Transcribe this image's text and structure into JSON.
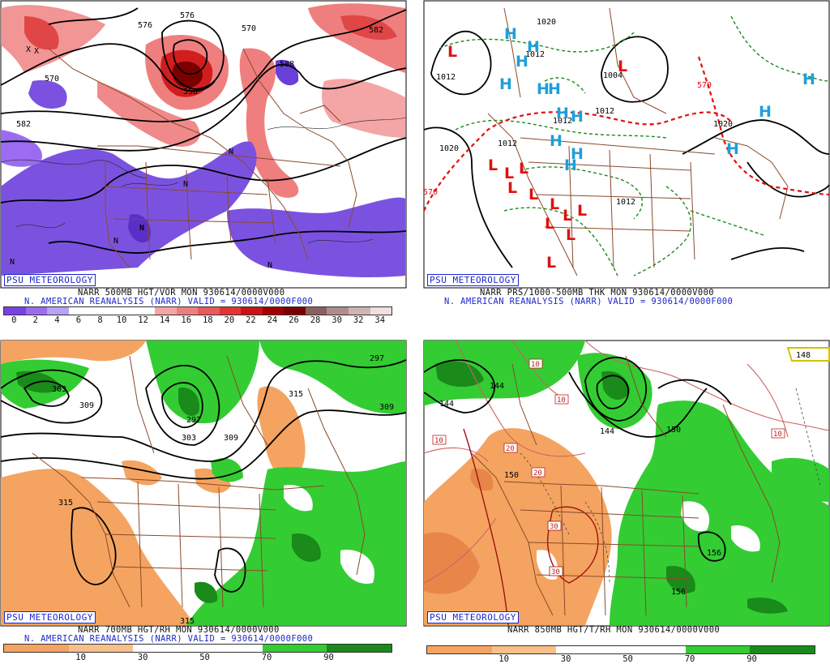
{
  "panels": [
    {
      "id": "tl",
      "badge": "PSU METEOROLOGY",
      "title_line1": "NARR 500MB HGT/VOR MON 930614/0000V000",
      "title_line2": "N. AMERICAN REANALYSIS (NARR) VALID = 930614/0000F000",
      "colorbar_ticks": [
        "0",
        "2",
        "4",
        "6",
        "8",
        "10",
        "12",
        "14",
        "16",
        "18",
        "20",
        "22",
        "24",
        "26",
        "28",
        "30",
        "32",
        "34"
      ],
      "colorbar_colors": [
        "#7b3fe6",
        "#9b6cf0",
        "#b9a2f5",
        "#ffffff",
        "#ffffff",
        "#ffffff",
        "#ffffff",
        "#f4a5a5",
        "#ef7f7f",
        "#e95a5a",
        "#e23434",
        "#c81414",
        "#a00000",
        "#7a0000",
        "#8c6060",
        "#b08c8c",
        "#d0b4b4",
        "#f2dede"
      ],
      "contour_labels": [
        "570",
        "576",
        "582",
        "558",
        "570",
        "576",
        "582",
        "588"
      ],
      "symbols": [
        "N",
        "X",
        "X"
      ]
    },
    {
      "id": "tr",
      "badge": "PSU METEOROLOGY",
      "title_line1": "NARR PRS/1000-500MB THK MON 930614/0000V000",
      "title_line2": "N. AMERICAN REANALYSIS (NARR) VALID = 930614/0000F000",
      "contour_labels": [
        "1020",
        "1012",
        "1020",
        "1012",
        "1004",
        "1012",
        "1020",
        "1012",
        "1012",
        "570",
        "570",
        "1012"
      ],
      "high_symbol": "H",
      "low_symbol": "L"
    },
    {
      "id": "bl",
      "badge": "PSU METEOROLOGY",
      "title_line1": "NARR 700MB HGT/RH MON 930614/0000V000",
      "title_line2": "N. AMERICAN REANALYSIS (NARR) VALID = 930614/0000F000",
      "colorbar_ticks": [
        "10",
        "30",
        "50",
        "70",
        "90"
      ],
      "colorbar_colors": [
        "#f4a460",
        "#f7c08a",
        "#ffffff",
        "#ffffff",
        "#33cc33",
        "#1a8a1a"
      ],
      "contour_labels": [
        "303",
        "309",
        "297",
        "303",
        "309",
        "315",
        "309",
        "315",
        "315",
        "297"
      ]
    },
    {
      "id": "br",
      "badge": "PSU METEOROLOGY",
      "title_line1": "NARR 850MB HGT/T/RH MON 930614/0000V000",
      "title_line2": "",
      "colorbar_ticks": [
        "10",
        "30",
        "50",
        "70",
        "90"
      ],
      "colorbar_colors": [
        "#f4a460",
        "#f7c08a",
        "#ffffff",
        "#ffffff",
        "#33cc33",
        "#1a8a1a"
      ],
      "contour_labels": [
        "144",
        "150",
        "144",
        "150",
        "156",
        "156",
        "144",
        "148"
      ],
      "temp_labels": [
        "10",
        "10",
        "10",
        "20",
        "20",
        "30",
        "30",
        "10"
      ]
    }
  ]
}
